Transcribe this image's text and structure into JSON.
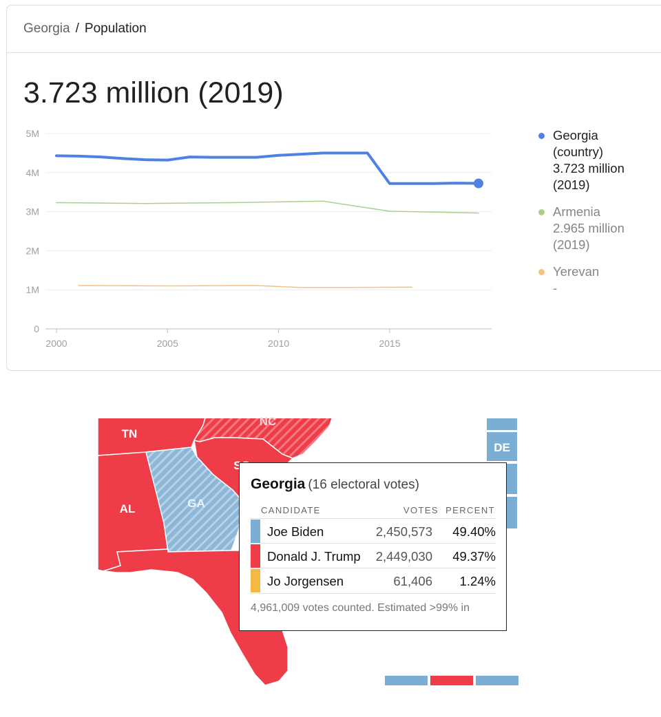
{
  "breadcrumb": {
    "parent": "Georgia",
    "separator": "/",
    "current": "Population"
  },
  "headline": "3.723 million (2019)",
  "chart_data": {
    "type": "line",
    "x_ticks": [
      "2000",
      "2005",
      "2010",
      "2015"
    ],
    "y_ticks": [
      "0",
      "1M",
      "2M",
      "3M",
      "4M",
      "5M"
    ],
    "xlim": [
      2000,
      2020
    ],
    "ylim": [
      0,
      5000000
    ],
    "grid": true,
    "legend_position": "right",
    "series": [
      {
        "name": "Georgia (country)",
        "color": "#4f80e3",
        "width": 4,
        "points": [
          [
            2000,
            4.43
          ],
          [
            2001,
            4.42
          ],
          [
            2002,
            4.4
          ],
          [
            2003,
            4.36
          ],
          [
            2004,
            4.33
          ],
          [
            2005,
            4.32
          ],
          [
            2006,
            4.4
          ],
          [
            2007,
            4.39
          ],
          [
            2008,
            4.39
          ],
          [
            2009,
            4.39
          ],
          [
            2010,
            4.44
          ],
          [
            2011,
            4.47
          ],
          [
            2012,
            4.5
          ],
          [
            2013,
            4.5
          ],
          [
            2014,
            4.5
          ],
          [
            2015,
            3.72
          ],
          [
            2016,
            3.72
          ],
          [
            2017,
            3.72
          ],
          [
            2018,
            3.73
          ],
          [
            2019,
            3.723
          ]
        ],
        "endpoint_marker": true
      },
      {
        "name": "Armenia",
        "color": "#a8d08d",
        "width": 1.5,
        "points": [
          [
            2000,
            3.23
          ],
          [
            2004,
            3.21
          ],
          [
            2008,
            3.23
          ],
          [
            2010,
            3.25
          ],
          [
            2012,
            3.27
          ],
          [
            2015,
            3.01
          ],
          [
            2017,
            2.99
          ],
          [
            2019,
            2.965
          ]
        ]
      },
      {
        "name": "Yerevan",
        "color": "#f6c27f",
        "width": 1.5,
        "points": [
          [
            2001,
            1.11
          ],
          [
            2005,
            1.1
          ],
          [
            2008,
            1.11
          ],
          [
            2009,
            1.11
          ],
          [
            2011,
            1.06
          ],
          [
            2013,
            1.06
          ],
          [
            2016,
            1.07
          ]
        ]
      }
    ]
  },
  "legend": [
    {
      "lines": [
        "Georgia",
        "(country)",
        "3.723 million",
        "(2019)"
      ],
      "color": "#4f80e3",
      "dark": true
    },
    {
      "lines": [
        "Armenia",
        "2.965 million",
        "(2019)"
      ],
      "color": "#a8d08d",
      "dark": false
    },
    {
      "lines": [
        "Yerevan",
        "-"
      ],
      "color": "#f6c27f",
      "dark": false
    }
  ],
  "map": {
    "colors": {
      "republican": "#ee3d48",
      "democrat": "#7aaed3",
      "border": "#ffffff"
    },
    "labels": {
      "tn": "TN",
      "nc": "NC",
      "al": "AL",
      "ga": "GA",
      "sc": "SC",
      "de": "DE"
    }
  },
  "tooltip": {
    "state": "Georgia",
    "electoral": "(16 electoral votes)",
    "headers": {
      "candidate": "CANDIDATE",
      "votes": "VOTES",
      "percent": "PERCENT"
    },
    "rows": [
      {
        "name": "Joe Biden",
        "votes": "2,450,573",
        "percent": "49.40%",
        "color": "#7aaed3"
      },
      {
        "name": "Donald J. Trump",
        "votes": "2,449,030",
        "percent": "49.37%",
        "color": "#ee3d48"
      },
      {
        "name": "Jo Jorgensen",
        "votes": "61,406",
        "percent": "1.24%",
        "color": "#f4b940"
      }
    ],
    "footer": "4,961,009 votes counted. Estimated >99% in"
  }
}
